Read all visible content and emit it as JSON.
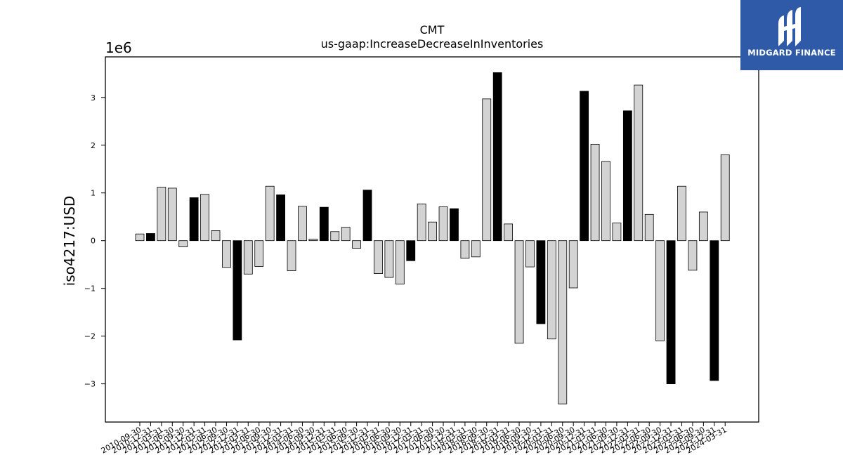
{
  "logo": {
    "text": "MIDGARD FINANCE",
    "background": "#2f5aa8"
  },
  "chart_data": {
    "type": "bar",
    "title": "CMT",
    "subtitle": "us-gaap:IncreaseDecreaseInInventories",
    "ylabel": "iso4217:USD",
    "xlabel": "",
    "y_multiplier_label": "1e6",
    "ylim": [
      -3.8,
      3.85
    ],
    "yticks": [
      -3,
      -2,
      -1,
      0,
      1,
      2,
      3
    ],
    "grid": false,
    "colors": {
      "q4": "#000000",
      "other": "#d3d3d3",
      "edge": "#000000"
    },
    "categories": [
      "2010-09-30",
      "2010-12-31",
      "2011-03-31",
      "2011-06-30",
      "2011-09-30",
      "2011-12-31",
      "2012-03-31",
      "2012-06-30",
      "2012-09-30",
      "2012-12-31",
      "2013-03-31",
      "2013-06-30",
      "2013-09-30",
      "2013-12-31",
      "2014-03-31",
      "2014-06-30",
      "2014-09-30",
      "2014-12-31",
      "2015-03-31",
      "2015-06-30",
      "2015-09-30",
      "2015-12-31",
      "2016-03-31",
      "2016-06-30",
      "2016-09-30",
      "2016-12-31",
      "2017-03-31",
      "2017-06-30",
      "2017-09-30",
      "2017-12-31",
      "2018-03-31",
      "2018-06-30",
      "2018-09-30",
      "2018-12-31",
      "2019-03-31",
      "2019-06-30",
      "2019-09-30",
      "2019-12-31",
      "2020-03-31",
      "2020-06-30",
      "2020-09-30",
      "2020-12-31",
      "2021-03-31",
      "2021-06-30",
      "2021-09-30",
      "2021-12-31",
      "2022-03-31",
      "2022-06-30",
      "2022-09-30",
      "2022-12-31",
      "2023-03-31",
      "2023-06-30",
      "2023-09-30",
      "2023-12-31",
      "2024-03-31"
    ],
    "values": [
      0.14,
      0.15,
      1.12,
      1.1,
      -0.13,
      0.9,
      0.97,
      0.21,
      -0.56,
      -2.08,
      -0.7,
      -0.54,
      1.14,
      0.96,
      -0.63,
      0.72,
      0.03,
      0.7,
      0.19,
      0.28,
      -0.16,
      1.06,
      -0.69,
      -0.77,
      -0.91,
      -0.42,
      0.77,
      0.39,
      0.71,
      0.67,
      -0.37,
      -0.34,
      2.97,
      3.52,
      0.35,
      -2.15,
      -0.55,
      -1.74,
      -2.06,
      -3.42,
      -0.99,
      3.13,
      2.02,
      1.66,
      0.37,
      2.72,
      3.26,
      0.55,
      -2.1,
      -3.0,
      1.14,
      -0.62,
      0.6,
      -2.93,
      1.8
    ],
    "highlight": [
      false,
      true,
      false,
      false,
      false,
      true,
      false,
      false,
      false,
      true,
      false,
      false,
      false,
      true,
      false,
      false,
      false,
      true,
      false,
      false,
      false,
      true,
      false,
      false,
      false,
      true,
      false,
      false,
      false,
      true,
      false,
      false,
      false,
      true,
      false,
      false,
      false,
      true,
      false,
      false,
      false,
      true,
      false,
      false,
      false,
      true,
      false,
      false,
      false,
      true,
      false,
      false,
      false,
      true,
      false
    ]
  }
}
